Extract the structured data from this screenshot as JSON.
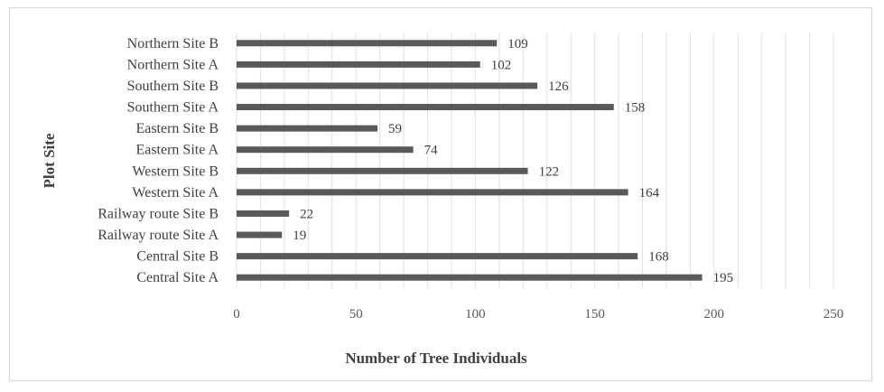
{
  "chart_data": {
    "type": "bar",
    "orientation": "horizontal",
    "title": "",
    "xlabel": "Number of Tree Individuals",
    "ylabel": "Plot Site",
    "xlim": [
      0,
      250
    ],
    "xticks": [
      0,
      50,
      100,
      150,
      200,
      250
    ],
    "grid": true,
    "legend": "none",
    "bar_color": "#595959",
    "categories": [
      "Central Site A",
      "Central Site B",
      "Railway route Site A",
      "Railway route Site B",
      "Western Site A",
      "Western Site B",
      "Eastern Site A",
      "Eastern Site B",
      "Southern Site A",
      "Southern Site B",
      "Northern Site A",
      "Northern Site B"
    ],
    "values": [
      195,
      168,
      19,
      22,
      164,
      122,
      74,
      59,
      158,
      126,
      102,
      109
    ]
  }
}
